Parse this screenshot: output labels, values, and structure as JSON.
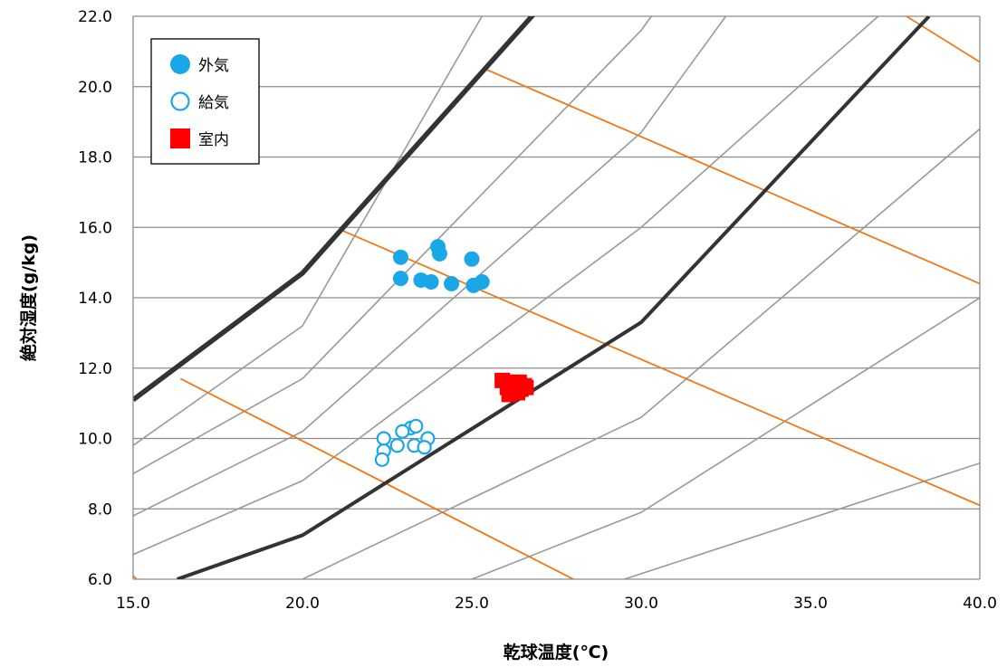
{
  "chart_data": {
    "type": "scatter",
    "xlabel": "乾球温度(℃)",
    "ylabel": "絶対湿度(g/kg)",
    "xlim": [
      15.0,
      40.0
    ],
    "ylim": [
      6.0,
      22.0
    ],
    "x_ticks": [
      "15.0",
      "20.0",
      "25.0",
      "30.0",
      "35.0",
      "40.0"
    ],
    "y_ticks": [
      "6.0",
      "8.0",
      "10.0",
      "12.0",
      "14.0",
      "16.0",
      "18.0",
      "20.0",
      "22.0"
    ],
    "grid": "horizontal",
    "legend_position": "top-left",
    "series": [
      {
        "name": "外気",
        "marker": "filled-circle",
        "color": "#1aa7e8",
        "points": [
          [
            22.9,
            15.15
          ],
          [
            24.0,
            15.45
          ],
          [
            24.05,
            15.25
          ],
          [
            25.0,
            15.1
          ],
          [
            22.9,
            14.55
          ],
          [
            23.5,
            14.5
          ],
          [
            23.8,
            14.45
          ],
          [
            24.4,
            14.4
          ],
          [
            25.05,
            14.35
          ],
          [
            25.3,
            14.45
          ]
        ]
      },
      {
        "name": "給気",
        "marker": "open-circle",
        "color": "#1aa7e8",
        "points": [
          [
            22.4,
            10.0
          ],
          [
            23.2,
            10.3
          ],
          [
            23.35,
            10.35
          ],
          [
            22.95,
            10.2
          ],
          [
            23.7,
            10.0
          ],
          [
            22.8,
            9.8
          ],
          [
            23.3,
            9.8
          ],
          [
            23.6,
            9.75
          ],
          [
            22.4,
            9.65
          ],
          [
            22.35,
            9.4
          ]
        ]
      },
      {
        "name": "室内",
        "marker": "filled-square",
        "color": "#ff0000",
        "points": [
          [
            25.9,
            11.65
          ],
          [
            26.1,
            11.6
          ],
          [
            26.2,
            11.5
          ],
          [
            26.3,
            11.55
          ],
          [
            26.4,
            11.6
          ],
          [
            26.55,
            11.5
          ],
          [
            26.2,
            11.35
          ],
          [
            26.35,
            11.3
          ],
          [
            26.6,
            11.45
          ],
          [
            26.1,
            11.25
          ],
          [
            26.45,
            11.4
          ],
          [
            26.05,
            11.45
          ]
        ]
      }
    ],
    "reference_lines": {
      "rh_thick": {
        "color": "#333333",
        "lines": [
          [
            [
              15.0,
              11.1
            ],
            [
              20.0,
              14.7
            ],
            [
              27.7,
              23.0
            ]
          ],
          [
            [
              16.3,
              6.0
            ],
            [
              20.0,
              7.25
            ],
            [
              30.0,
              13.3
            ],
            [
              38.5,
              22.0
            ]
          ]
        ]
      },
      "rh_thin": {
        "color": "#999999",
        "lines": [
          [
            [
              15.0,
              9.8
            ],
            [
              20.0,
              13.2
            ],
            [
              25.3,
              22.0
            ]
          ],
          [
            [
              15.0,
              9.0
            ],
            [
              20.0,
              11.7
            ],
            [
              30.0,
              21.6
            ],
            [
              30.3,
              22.0
            ]
          ],
          [
            [
              15.0,
              7.8
            ],
            [
              20.0,
              10.2
            ],
            [
              30.0,
              18.7
            ],
            [
              32.5,
              22.0
            ]
          ],
          [
            [
              15.0,
              6.7
            ],
            [
              20.0,
              8.8
            ],
            [
              30.0,
              16.0
            ],
            [
              35.0,
              20.3
            ],
            [
              37.0,
              22.0
            ]
          ],
          [
            [
              20.0,
              6.0
            ],
            [
              30.0,
              10.6
            ],
            [
              40.0,
              18.8
            ]
          ],
          [
            [
              25.0,
              6.0
            ],
            [
              30.0,
              7.9
            ],
            [
              40.0,
              14.0
            ]
          ],
          [
            [
              29.5,
              6.0
            ],
            [
              40.0,
              9.3
            ]
          ]
        ]
      },
      "enthalpy": {
        "color": "#f07818",
        "lines": [
          [
            [
              15.0,
              6.1
            ],
            [
              15.1,
              6.0
            ]
          ],
          [
            [
              16.4,
              11.7
            ],
            [
              28.0,
              6.0
            ]
          ],
          [
            [
              21.2,
              15.9
            ],
            [
              40.0,
              8.1
            ]
          ],
          [
            [
              25.4,
              20.5
            ],
            [
              40.0,
              14.4
            ]
          ],
          [
            [
              37.5,
              22.2
            ],
            [
              40.0,
              20.7
            ]
          ]
        ]
      }
    }
  }
}
